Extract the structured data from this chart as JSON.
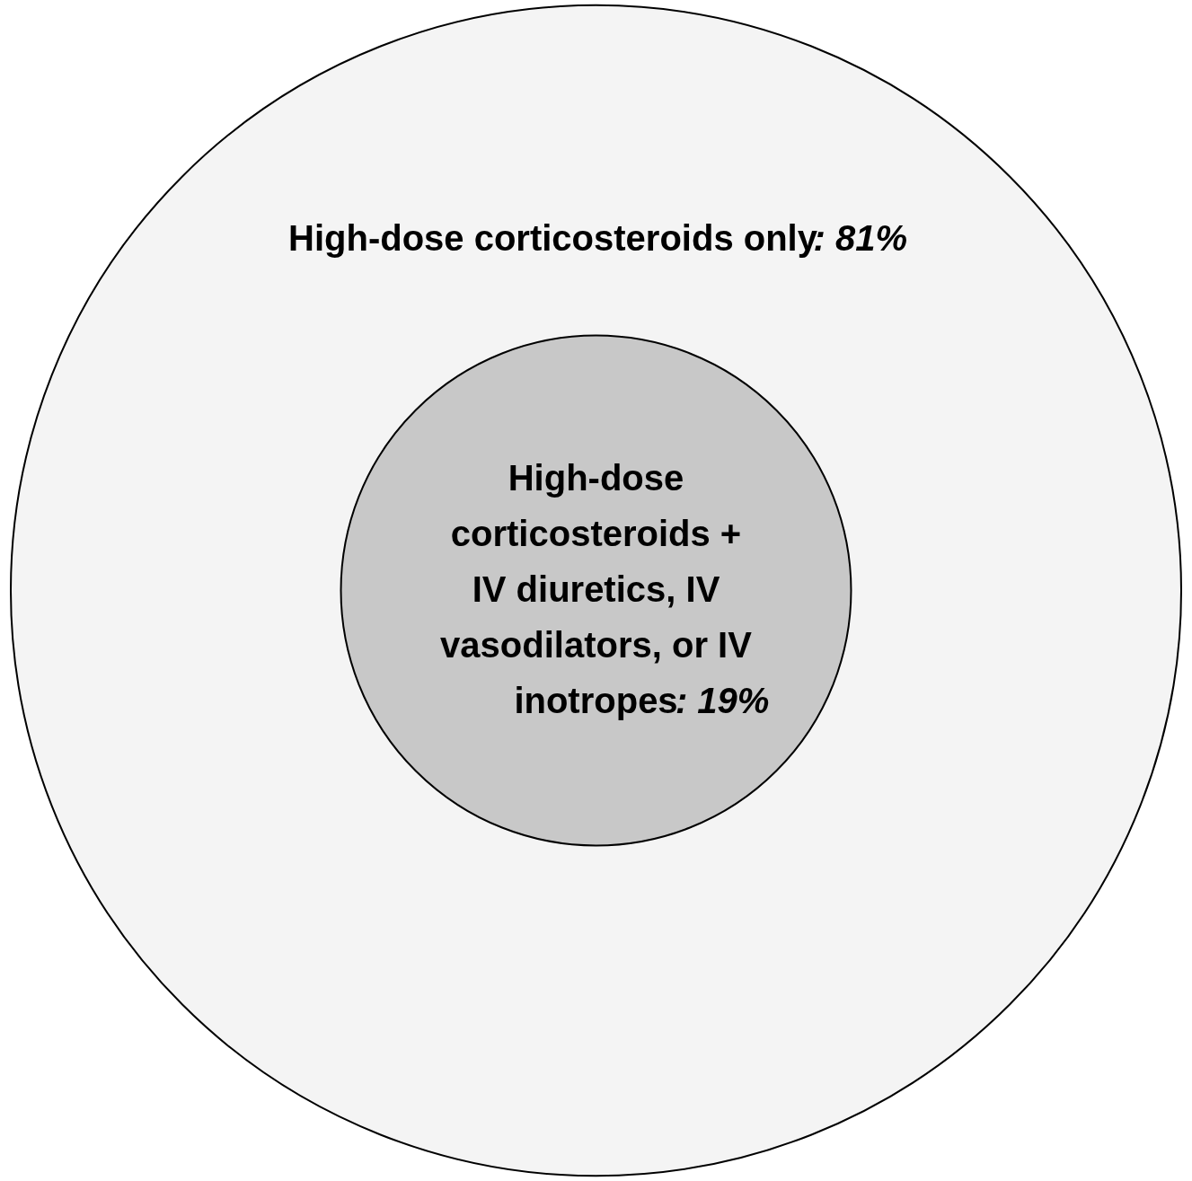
{
  "chart_data": {
    "type": "other",
    "categories": [
      "High-dose corticosteroids only",
      "High-dose corticosteroids + IV diuretics, IV vasodilators, or IV inotropes"
    ],
    "values": [
      81,
      19
    ],
    "value_labels": [
      ": 81%",
      ": 19%"
    ],
    "colors": [
      "#f4f4f4",
      "#c8c8c8"
    ]
  }
}
